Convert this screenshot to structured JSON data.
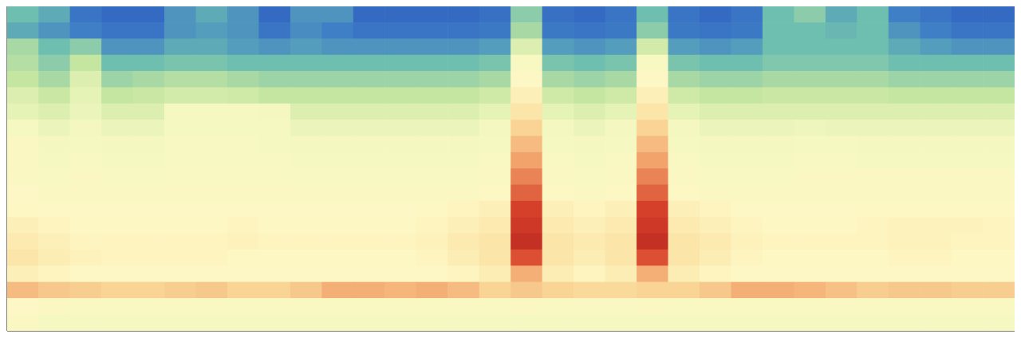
{
  "chart_data": {
    "type": "heatmap",
    "xlim": [
      0,
      32
    ],
    "ylim": [
      0,
      20
    ],
    "zlim": [
      0,
      1
    ],
    "tick_labels": false,
    "z": [
      [
        0.3,
        0.25,
        0.1,
        0.05,
        0.05,
        0.2,
        0.25,
        0.2,
        0.05,
        0.2,
        0.2,
        0.05,
        0.05,
        0.05,
        0.05,
        0.08,
        0.35,
        0.08,
        0.05,
        0.1,
        0.3,
        0.1,
        0.05,
        0.1,
        0.3,
        0.35,
        0.25,
        0.3,
        0.15,
        0.1,
        0.05,
        0.05
      ],
      [
        0.25,
        0.2,
        0.15,
        0.1,
        0.1,
        0.2,
        0.22,
        0.2,
        0.1,
        0.18,
        0.15,
        0.1,
        0.1,
        0.1,
        0.1,
        0.12,
        0.4,
        0.12,
        0.1,
        0.12,
        0.35,
        0.12,
        0.1,
        0.12,
        0.3,
        0.3,
        0.28,
        0.3,
        0.2,
        0.15,
        0.1,
        0.1
      ],
      [
        0.4,
        0.3,
        0.35,
        0.2,
        0.2,
        0.25,
        0.25,
        0.22,
        0.2,
        0.22,
        0.2,
        0.2,
        0.2,
        0.2,
        0.2,
        0.22,
        0.5,
        0.22,
        0.2,
        0.22,
        0.48,
        0.22,
        0.2,
        0.22,
        0.3,
        0.3,
        0.3,
        0.3,
        0.25,
        0.22,
        0.2,
        0.2
      ],
      [
        0.42,
        0.35,
        0.45,
        0.3,
        0.3,
        0.32,
        0.32,
        0.3,
        0.3,
        0.3,
        0.3,
        0.3,
        0.3,
        0.3,
        0.3,
        0.32,
        0.58,
        0.32,
        0.3,
        0.32,
        0.58,
        0.32,
        0.3,
        0.3,
        0.33,
        0.33,
        0.33,
        0.33,
        0.3,
        0.3,
        0.3,
        0.3
      ],
      [
        0.45,
        0.4,
        0.5,
        0.38,
        0.4,
        0.42,
        0.42,
        0.4,
        0.38,
        0.38,
        0.38,
        0.38,
        0.38,
        0.38,
        0.38,
        0.4,
        0.62,
        0.4,
        0.38,
        0.4,
        0.62,
        0.4,
        0.38,
        0.38,
        0.4,
        0.4,
        0.4,
        0.4,
        0.38,
        0.38,
        0.38,
        0.38
      ],
      [
        0.5,
        0.46,
        0.52,
        0.45,
        0.46,
        0.48,
        0.48,
        0.47,
        0.45,
        0.45,
        0.45,
        0.45,
        0.45,
        0.45,
        0.45,
        0.47,
        0.66,
        0.47,
        0.45,
        0.47,
        0.66,
        0.47,
        0.45,
        0.45,
        0.46,
        0.46,
        0.46,
        0.46,
        0.45,
        0.45,
        0.45,
        0.45
      ],
      [
        0.52,
        0.5,
        0.53,
        0.5,
        0.5,
        0.56,
        0.56,
        0.56,
        0.55,
        0.5,
        0.5,
        0.5,
        0.5,
        0.5,
        0.5,
        0.52,
        0.7,
        0.52,
        0.5,
        0.52,
        0.7,
        0.52,
        0.5,
        0.5,
        0.5,
        0.5,
        0.5,
        0.5,
        0.5,
        0.5,
        0.5,
        0.5
      ],
      [
        0.56,
        0.53,
        0.55,
        0.53,
        0.53,
        0.57,
        0.57,
        0.57,
        0.56,
        0.53,
        0.53,
        0.53,
        0.53,
        0.53,
        0.53,
        0.55,
        0.74,
        0.55,
        0.53,
        0.55,
        0.74,
        0.55,
        0.53,
        0.53,
        0.53,
        0.54,
        0.53,
        0.53,
        0.53,
        0.53,
        0.53,
        0.53
      ],
      [
        0.6,
        0.55,
        0.57,
        0.55,
        0.55,
        0.58,
        0.58,
        0.58,
        0.57,
        0.55,
        0.55,
        0.55,
        0.55,
        0.55,
        0.55,
        0.57,
        0.78,
        0.57,
        0.55,
        0.57,
        0.78,
        0.57,
        0.55,
        0.55,
        0.55,
        0.56,
        0.56,
        0.55,
        0.55,
        0.55,
        0.55,
        0.55
      ],
      [
        0.6,
        0.57,
        0.58,
        0.57,
        0.57,
        0.58,
        0.58,
        0.58,
        0.58,
        0.57,
        0.57,
        0.57,
        0.57,
        0.57,
        0.57,
        0.59,
        0.82,
        0.59,
        0.57,
        0.59,
        0.82,
        0.59,
        0.57,
        0.57,
        0.57,
        0.58,
        0.58,
        0.57,
        0.57,
        0.57,
        0.57,
        0.57
      ],
      [
        0.6,
        0.58,
        0.6,
        0.58,
        0.58,
        0.59,
        0.59,
        0.59,
        0.59,
        0.58,
        0.58,
        0.58,
        0.58,
        0.58,
        0.58,
        0.6,
        0.85,
        0.6,
        0.58,
        0.6,
        0.85,
        0.6,
        0.58,
        0.58,
        0.58,
        0.6,
        0.6,
        0.6,
        0.6,
        0.6,
        0.6,
        0.6
      ],
      [
        0.62,
        0.6,
        0.6,
        0.6,
        0.6,
        0.6,
        0.6,
        0.6,
        0.6,
        0.6,
        0.6,
        0.6,
        0.6,
        0.6,
        0.6,
        0.63,
        0.88,
        0.63,
        0.6,
        0.63,
        0.88,
        0.63,
        0.6,
        0.6,
        0.6,
        0.61,
        0.61,
        0.61,
        0.61,
        0.61,
        0.61,
        0.61
      ],
      [
        0.63,
        0.62,
        0.62,
        0.62,
        0.62,
        0.62,
        0.62,
        0.62,
        0.62,
        0.62,
        0.62,
        0.62,
        0.62,
        0.63,
        0.64,
        0.66,
        0.92,
        0.66,
        0.64,
        0.66,
        0.92,
        0.66,
        0.64,
        0.62,
        0.62,
        0.62,
        0.62,
        0.63,
        0.63,
        0.63,
        0.63,
        0.63
      ],
      [
        0.66,
        0.64,
        0.63,
        0.63,
        0.63,
        0.63,
        0.63,
        0.64,
        0.63,
        0.63,
        0.63,
        0.63,
        0.63,
        0.64,
        0.66,
        0.68,
        0.94,
        0.68,
        0.66,
        0.68,
        0.94,
        0.68,
        0.66,
        0.64,
        0.63,
        0.63,
        0.63,
        0.64,
        0.65,
        0.65,
        0.65,
        0.64
      ],
      [
        0.68,
        0.66,
        0.64,
        0.64,
        0.64,
        0.64,
        0.64,
        0.65,
        0.64,
        0.64,
        0.64,
        0.64,
        0.64,
        0.65,
        0.68,
        0.7,
        0.96,
        0.7,
        0.68,
        0.7,
        0.96,
        0.7,
        0.68,
        0.65,
        0.64,
        0.64,
        0.64,
        0.64,
        0.65,
        0.65,
        0.64,
        0.64
      ],
      [
        0.7,
        0.67,
        0.65,
        0.64,
        0.64,
        0.64,
        0.64,
        0.63,
        0.63,
        0.63,
        0.63,
        0.63,
        0.63,
        0.64,
        0.67,
        0.7,
        0.9,
        0.7,
        0.67,
        0.7,
        0.9,
        0.7,
        0.67,
        0.64,
        0.63,
        0.63,
        0.63,
        0.63,
        0.64,
        0.64,
        0.63,
        0.63
      ],
      [
        0.66,
        0.64,
        0.62,
        0.62,
        0.62,
        0.62,
        0.62,
        0.62,
        0.62,
        0.62,
        0.62,
        0.62,
        0.62,
        0.62,
        0.64,
        0.67,
        0.8,
        0.67,
        0.64,
        0.67,
        0.8,
        0.67,
        0.64,
        0.62,
        0.62,
        0.62,
        0.62,
        0.62,
        0.62,
        0.62,
        0.62,
        0.62
      ],
      [
        0.78,
        0.76,
        0.75,
        0.74,
        0.74,
        0.75,
        0.76,
        0.74,
        0.74,
        0.76,
        0.8,
        0.8,
        0.79,
        0.8,
        0.78,
        0.74,
        0.76,
        0.74,
        0.73,
        0.73,
        0.74,
        0.74,
        0.76,
        0.8,
        0.8,
        0.79,
        0.77,
        0.75,
        0.76,
        0.76,
        0.75,
        0.75
      ],
      [
        0.62,
        0.6,
        0.59,
        0.59,
        0.59,
        0.59,
        0.59,
        0.59,
        0.59,
        0.59,
        0.59,
        0.59,
        0.59,
        0.59,
        0.59,
        0.59,
        0.6,
        0.59,
        0.59,
        0.59,
        0.6,
        0.59,
        0.59,
        0.59,
        0.59,
        0.59,
        0.59,
        0.59,
        0.59,
        0.59,
        0.59,
        0.59
      ],
      [
        0.6,
        0.57,
        0.57,
        0.57,
        0.57,
        0.57,
        0.57,
        0.57,
        0.57,
        0.57,
        0.57,
        0.57,
        0.57,
        0.57,
        0.57,
        0.57,
        0.57,
        0.57,
        0.57,
        0.57,
        0.57,
        0.57,
        0.57,
        0.57,
        0.57,
        0.57,
        0.57,
        0.57,
        0.57,
        0.57,
        0.57,
        0.57
      ]
    ]
  }
}
